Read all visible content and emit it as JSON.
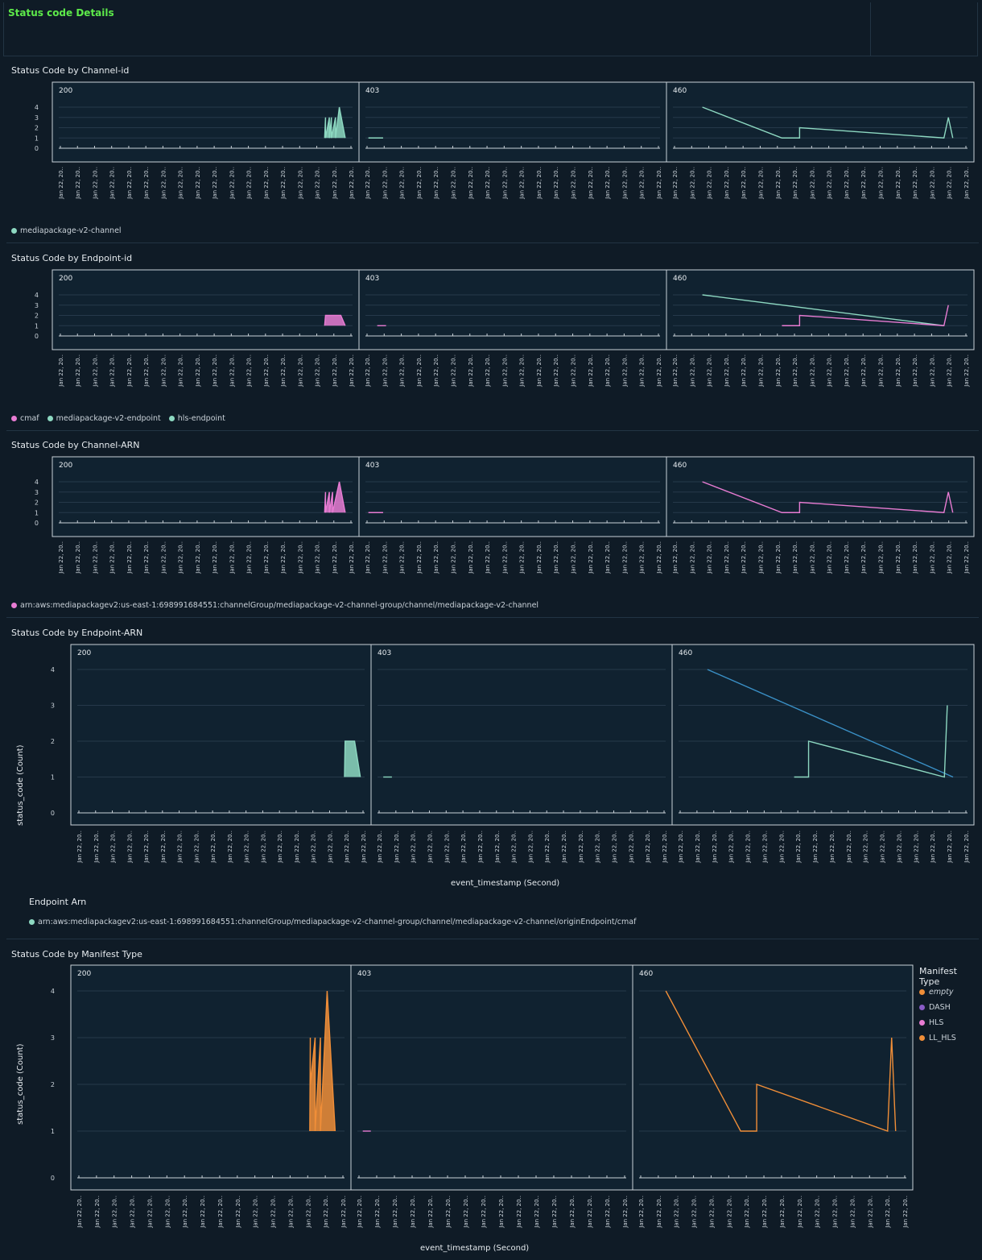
{
  "header": {
    "title": "Status code Details"
  },
  "colors": {
    "teal": "#8dd8c1",
    "pink": "#e87cd3",
    "blue": "#3a90c6",
    "orange": "#f08e38",
    "purple": "#8a5cc7"
  },
  "panels": [
    {
      "title": "Status Code by Channel-id",
      "legend": [
        {
          "label": "mediapackage-v2-channel",
          "color": "#8dd8c1"
        }
      ],
      "facets": [
        "200",
        "403",
        "460"
      ]
    },
    {
      "title": "Status Code by Endpoint-id",
      "legend": [
        {
          "label": "cmaf",
          "color": "#e87cd3"
        },
        {
          "label": "mediapackage-v2-endpoint",
          "color": "#8dd8c1"
        },
        {
          "label": "hls-endpoint",
          "color": "#8dd8c1"
        }
      ],
      "facets": [
        "200",
        "403",
        "460"
      ]
    },
    {
      "title": "Status Code by Channel-ARN",
      "legend": [
        {
          "label": "arn:aws:mediapackagev2:us-east-1:698991684551:channelGroup/mediapackage-v2-channel-group/channel/mediapackage-v2-channel",
          "color": "#e87cd3"
        }
      ],
      "facets": [
        "200",
        "403",
        "460"
      ]
    },
    {
      "title": "Status Code by Endpoint-ARN",
      "ylabel": "status_code (Count)",
      "xlabel": "event_timestamp (Second)",
      "legend_title": "Endpoint Arn",
      "legend": [
        {
          "label": "arn:aws:mediapackagev2:us-east-1:698991684551:channelGroup/mediapackage-v2-channel-group/channel/mediapackage-v2-channel/originEndpoint/cmaf",
          "color": "#8dd8c1"
        }
      ],
      "facets": [
        "200",
        "403",
        "460"
      ]
    },
    {
      "title": "Status Code  by Manifest Type",
      "ylabel": "status_code (Count)",
      "xlabel": "event_timestamp (Second)",
      "legend_title": "Manifest Type",
      "legend": [
        {
          "label": "empty",
          "color": "#f08e38"
        },
        {
          "label": "DASH",
          "color": "#8a5cc7"
        },
        {
          "label": "HLS",
          "color": "#e87cd3"
        },
        {
          "label": "LL_HLS",
          "color": "#f08e38"
        }
      ],
      "facets": [
        "200",
        "403",
        "460"
      ]
    }
  ],
  "chart_data": [
    {
      "type": "line",
      "title": "Status Code by Channel-id",
      "facet_by": "status code",
      "ylim": [
        0,
        4
      ],
      "yticks": [
        "0",
        "1",
        "2",
        "3",
        "4"
      ],
      "tick_label": "Jan 22, 20..",
      "facets": {
        "200": [
          {
            "series": "mediapackage-v2-channel",
            "values": [
              1,
              3,
              1,
              3,
              1,
              3,
              1,
              3,
              1,
              4,
              1
            ]
          }
        ],
        "403": [
          {
            "series": "mediapackage-v2-channel",
            "values": [
              1,
              1
            ]
          }
        ],
        "460": [
          {
            "series": "mediapackage-v2-channel",
            "values": [
              4,
              1,
              1,
              2,
              1,
              3,
              1
            ]
          }
        ]
      }
    },
    {
      "type": "line",
      "title": "Status Code by Endpoint-id",
      "facet_by": "status code",
      "ylim": [
        0,
        4
      ],
      "yticks": [
        "0",
        "1",
        "2",
        "3",
        "4"
      ],
      "tick_label": "Jan 22, 20..",
      "facets": {
        "200": [
          {
            "series": "cmaf",
            "values": [
              1,
              2,
              2,
              1
            ]
          }
        ],
        "403": [
          {
            "series": "cmaf",
            "values": [
              1,
              1
            ]
          }
        ],
        "460": [
          {
            "series": "mediapackage-v2-endpoint",
            "values": [
              4,
              1
            ]
          },
          {
            "series": "cmaf",
            "values": [
              1,
              1,
              2,
              1,
              3
            ]
          }
        ]
      }
    },
    {
      "type": "line",
      "title": "Status Code by Channel-ARN",
      "facet_by": "status code",
      "ylim": [
        0,
        4
      ],
      "yticks": [
        "0",
        "1",
        "2",
        "3",
        "4"
      ],
      "tick_label": "Jan 22, 20..",
      "facets": {
        "200": [
          {
            "series": "arn:aws:mediapackagev2:us-east-1:698991684551:channelGroup/mediapackage-v2-channel-group/channel/mediapackage-v2-channel",
            "values": [
              1,
              3,
              1,
              3,
              1,
              3,
              1,
              4,
              1
            ]
          }
        ],
        "403": [
          {
            "series": "arn:aws:mediapackagev2:us-east-1:698991684551:channelGroup/mediapackage-v2-channel-group/channel/mediapackage-v2-channel",
            "values": [
              1,
              1
            ]
          }
        ],
        "460": [
          {
            "series": "arn:aws:mediapackagev2:us-east-1:698991684551:channelGroup/mediapackage-v2-channel-group/channel/mediapackage-v2-channel",
            "values": [
              4,
              1,
              1,
              2,
              1,
              3,
              1
            ]
          }
        ]
      }
    },
    {
      "type": "line",
      "title": "Status Code by Endpoint-ARN",
      "facet_by": "status code",
      "ylabel": "status_code (Count)",
      "xlabel": "event_timestamp (Second)",
      "ylim": [
        0,
        4
      ],
      "yticks": [
        "0",
        "1",
        "2",
        "3",
        "4"
      ],
      "tick_label": "Jan 22, 20..",
      "facets": {
        "200": [
          {
            "series": "arn:aws:mediapackagev2:us-east-1:698991684551:channelGroup/mediapackage-v2-channel-group/channel/mediapackage-v2-channel/originEndpoint/cmaf",
            "values": [
              1,
              2,
              2,
              1
            ]
          }
        ],
        "403": [
          {
            "series": "arn:aws:mediapackagev2:us-east-1:698991684551:channelGroup/mediapackage-v2-channel-group/channel/mediapackage-v2-channel/originEndpoint/cmaf",
            "values": [
              1,
              1
            ]
          }
        ],
        "460": [
          {
            "series": "blue",
            "values": [
              4,
              1
            ]
          },
          {
            "series": "arn:aws:mediapackagev2:us-east-1:698991684551:channelGroup/mediapackage-v2-channel-group/channel/mediapackage-v2-channel/originEndpoint/cmaf",
            "values": [
              1,
              1,
              2,
              1,
              3
            ]
          }
        ]
      }
    },
    {
      "type": "line",
      "title": "Status Code  by Manifest Type",
      "facet_by": "status code",
      "ylabel": "status_code (Count)",
      "xlabel": "event_timestamp (Second)",
      "ylim": [
        0,
        4
      ],
      "yticks": [
        "0",
        "1",
        "2",
        "3",
        "4"
      ],
      "tick_label": "Jan 22, 20..",
      "facets": {
        "200": [
          {
            "series": "LL_HLS",
            "values": [
              1,
              3,
              2,
              3,
              1,
              3,
              1,
              4,
              1
            ]
          }
        ],
        "403": [
          {
            "series": "HLS",
            "values": [
              1,
              1
            ]
          }
        ],
        "460": [
          {
            "series": "LL_HLS",
            "values": [
              4,
              1,
              1,
              2,
              1,
              3,
              1
            ]
          }
        ]
      }
    }
  ]
}
